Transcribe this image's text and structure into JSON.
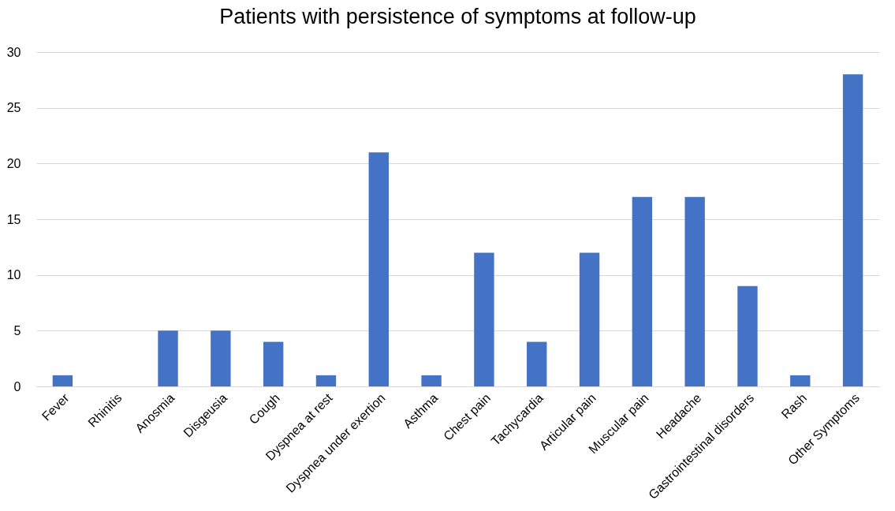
{
  "chart_data": {
    "type": "bar",
    "title": "Patients with persistence of symptoms at follow-up",
    "categories": [
      "Fever",
      "Rhinitis",
      "Anosmia",
      "Disgeusia",
      "Cough",
      "Dyspnea at rest",
      "Dyspnea under exertion",
      "Asthma",
      "Chest pain",
      "Tachycardia",
      "Articular pain",
      "Muscular pain",
      "Headache",
      "Gastrointestinal disorders",
      "Rash",
      "Other Symptoms"
    ],
    "values": [
      1,
      0,
      5,
      5,
      4,
      1,
      21,
      1,
      12,
      4,
      12,
      17,
      17,
      9,
      1,
      28
    ],
    "color": "#4472c4",
    "ylim": [
      0,
      30
    ],
    "yticks": [
      0,
      5,
      10,
      15,
      20,
      25,
      30
    ],
    "grid": "y"
  }
}
